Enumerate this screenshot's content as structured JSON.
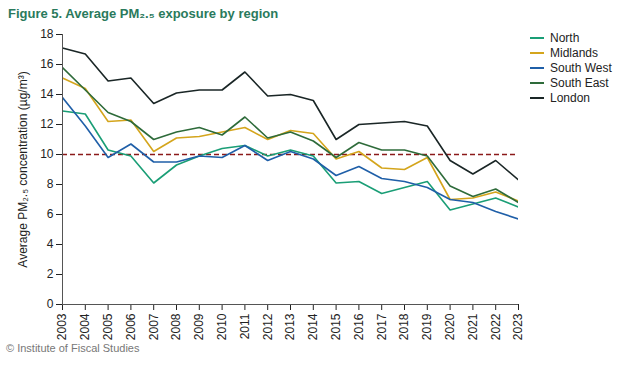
{
  "chart_data": {
    "type": "line",
    "title": "Figure 5. Average PM₂.₅ exposure by region",
    "y_label": "Average PM₂.₅ concentration (µg/m³)",
    "source": "© Institute of Fiscal Studies",
    "x": [
      2003,
      2004,
      2005,
      2006,
      2007,
      2008,
      2009,
      2010,
      2011,
      2012,
      2013,
      2014,
      2015,
      2016,
      2017,
      2018,
      2019,
      2020,
      2021,
      2022,
      2023
    ],
    "series": [
      {
        "name": "North",
        "color": "#1a9e76",
        "values": [
          12.9,
          12.7,
          10.3,
          9.9,
          8.1,
          9.3,
          9.9,
          10.4,
          10.6,
          9.9,
          10.3,
          9.9,
          8.1,
          8.2,
          7.4,
          7.8,
          8.2,
          6.3,
          6.7,
          7.1,
          6.5
        ]
      },
      {
        "name": "Midlands",
        "color": "#d4a51c",
        "values": [
          15.1,
          14.4,
          12.2,
          12.3,
          10.2,
          11.1,
          11.2,
          11.5,
          11.8,
          11.0,
          11.6,
          11.4,
          9.7,
          10.2,
          9.1,
          9.0,
          9.8,
          7.0,
          7.1,
          7.5,
          6.9
        ]
      },
      {
        "name": "South West",
        "color": "#1f5fa8",
        "values": [
          13.8,
          11.9,
          9.8,
          10.7,
          9.5,
          9.5,
          9.9,
          9.8,
          10.6,
          9.6,
          10.2,
          9.7,
          8.6,
          9.2,
          8.4,
          8.2,
          7.8,
          7.0,
          6.8,
          6.2,
          5.7
        ]
      },
      {
        "name": "South East",
        "color": "#2e6b3a",
        "values": [
          15.8,
          14.3,
          12.8,
          12.2,
          11.0,
          11.5,
          11.8,
          11.3,
          12.5,
          11.1,
          11.5,
          10.9,
          9.8,
          10.8,
          10.3,
          10.3,
          9.9,
          7.9,
          7.2,
          7.7,
          6.8
        ]
      },
      {
        "name": "London",
        "color": "#1a2626",
        "values": [
          17.1,
          16.7,
          14.9,
          15.1,
          13.4,
          14.1,
          14.3,
          14.3,
          15.5,
          13.9,
          14.0,
          13.6,
          11.0,
          12.0,
          12.1,
          12.2,
          11.9,
          9.6,
          8.7,
          9.6,
          8.3
        ]
      }
    ],
    "threshold": 10,
    "xlim": [
      2003,
      2023
    ],
    "xticks": [
      2003,
      2004,
      2005,
      2006,
      2007,
      2008,
      2009,
      2010,
      2011,
      2012,
      2013,
      2014,
      2015,
      2016,
      2017,
      2018,
      2019,
      2020,
      2021,
      2022,
      2023
    ],
    "ylim": [
      0,
      18
    ],
    "yticks": [
      0,
      2,
      4,
      6,
      8,
      10,
      12,
      14,
      16,
      18
    ],
    "grid": false,
    "legend": "right"
  }
}
